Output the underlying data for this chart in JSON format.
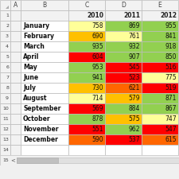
{
  "months": [
    "January",
    "February",
    "March",
    "April",
    "May",
    "June",
    "July",
    "August",
    "September",
    "October",
    "November",
    "December"
  ],
  "years": [
    "2010",
    "2011",
    "2012"
  ],
  "values": [
    [
      758,
      869,
      955
    ],
    [
      690,
      761,
      841
    ],
    [
      935,
      932,
      918
    ],
    [
      604,
      907,
      850
    ],
    [
      953,
      545,
      516
    ],
    [
      941,
      523,
      775
    ],
    [
      730,
      621,
      519
    ],
    [
      714,
      579,
      871
    ],
    [
      569,
      884,
      867
    ],
    [
      878,
      575,
      747
    ],
    [
      551,
      962,
      547
    ],
    [
      590,
      537,
      615
    ]
  ],
  "cell_colors": [
    [
      "#FFFF99",
      "#92D050",
      "#92D050"
    ],
    [
      "#FFC000",
      "#FFFF99",
      "#92D050"
    ],
    [
      "#92D050",
      "#92D050",
      "#92D050"
    ],
    [
      "#FF0000",
      "#92D050",
      "#92D050"
    ],
    [
      "#92D050",
      "#FF0000",
      "#FF0000"
    ],
    [
      "#92D050",
      "#FF0000",
      "#FFFF99"
    ],
    [
      "#FFC000",
      "#FF6600",
      "#FF0000"
    ],
    [
      "#FFFF99",
      "#FFC000",
      "#92D050"
    ],
    [
      "#FF0000",
      "#92D050",
      "#92D050"
    ],
    [
      "#92D050",
      "#FFC000",
      "#FFFF99"
    ],
    [
      "#FF0000",
      "#92D050",
      "#FF0000"
    ],
    [
      "#FF6600",
      "#FF0000",
      "#FF6600"
    ]
  ],
  "grid_color": "#BBBBBB",
  "background": "#FFFFFF",
  "header_bg": "#F2F2F2",
  "row_num_bg": "#F2F2F2",
  "figsize": [
    2.25,
    2.25
  ],
  "dpi": 100
}
